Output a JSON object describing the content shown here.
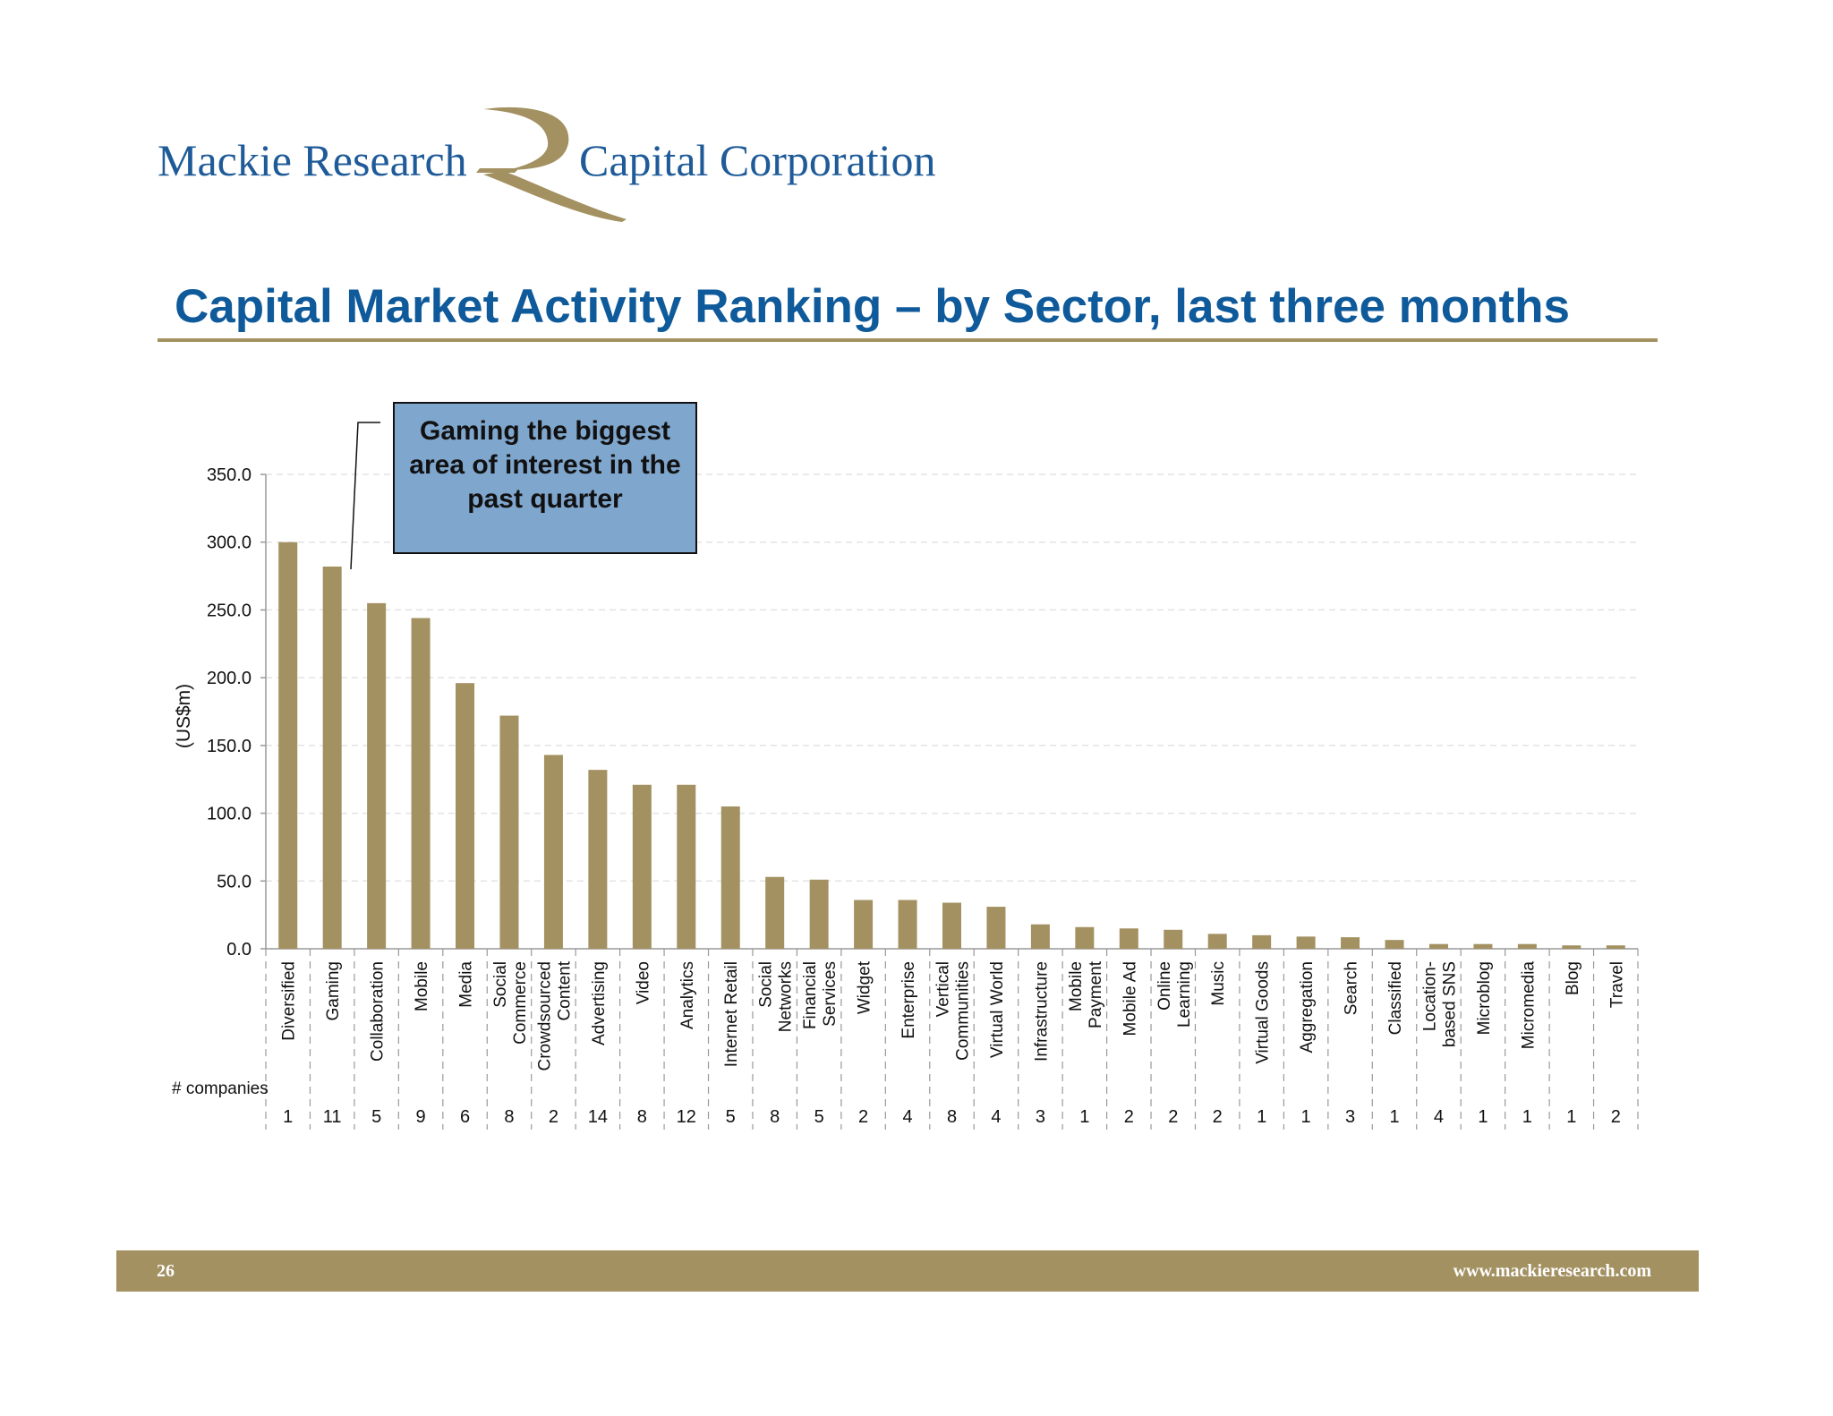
{
  "header": {
    "brand_left": "Mackie Research",
    "brand_right": "Capital Corporation",
    "brand_color": "#1f5b98",
    "logo_color": "#a39161"
  },
  "page_title": "Capital Market Activity Ranking – by Sector, last three months",
  "callout": "Gaming the biggest area of interest in the past quarter",
  "footer": {
    "page_number": "26",
    "website": "www.mackieresearch.com"
  },
  "chart_data": {
    "type": "bar",
    "title": "",
    "ylabel": "(US$m)",
    "xlabel": "",
    "ylim": [
      0,
      350
    ],
    "yticks": [
      "0.0",
      "50.0",
      "100.0",
      "150.0",
      "200.0",
      "250.0",
      "300.0",
      "350.0"
    ],
    "grid": true,
    "bar_color": "#a39161",
    "companies_label": "# companies",
    "categories": [
      [
        "Diversified"
      ],
      [
        "Gaming"
      ],
      [
        "Collaboration"
      ],
      [
        "Mobile"
      ],
      [
        "Media"
      ],
      [
        "Social",
        "Commerce"
      ],
      [
        "Crowdsourced",
        "Content"
      ],
      [
        "Advertising"
      ],
      [
        "Video"
      ],
      [
        "Analytics"
      ],
      [
        "Internet Retail"
      ],
      [
        "Social",
        "Networks"
      ],
      [
        "Financial",
        "Services"
      ],
      [
        "Widget"
      ],
      [
        "Enterprise"
      ],
      [
        "Vertical",
        "Communities"
      ],
      [
        "Virtual World"
      ],
      [
        "Infrastructure"
      ],
      [
        "Mobile",
        "Payment"
      ],
      [
        "Mobile Ad"
      ],
      [
        "Online",
        "Learning"
      ],
      [
        "Music"
      ],
      [
        "Virtual Goods"
      ],
      [
        "Aggregation"
      ],
      [
        "Search"
      ],
      [
        "Classified"
      ],
      [
        "Location-",
        "based SNS"
      ],
      [
        "Microblog"
      ],
      [
        "Micromedia"
      ],
      [
        "Blog"
      ],
      [
        "Travel"
      ]
    ],
    "values": [
      300,
      282,
      255,
      244,
      196,
      172,
      143,
      132,
      121,
      121,
      105,
      53,
      51,
      36,
      36,
      34,
      31,
      18,
      16,
      15,
      14,
      11,
      10,
      9,
      8.5,
      6.5,
      3.5,
      3.5,
      3.5,
      2.5,
      2.5
    ],
    "companies": [
      "1",
      "11",
      "5",
      "9",
      "6",
      "8",
      "2",
      "14",
      "8",
      "12",
      "5",
      "8",
      "5",
      "2",
      "4",
      "8",
      "4",
      "3",
      "1",
      "2",
      "2",
      "2",
      "1",
      "1",
      "3",
      "1",
      "4",
      "1",
      "1",
      "1",
      "2"
    ]
  }
}
